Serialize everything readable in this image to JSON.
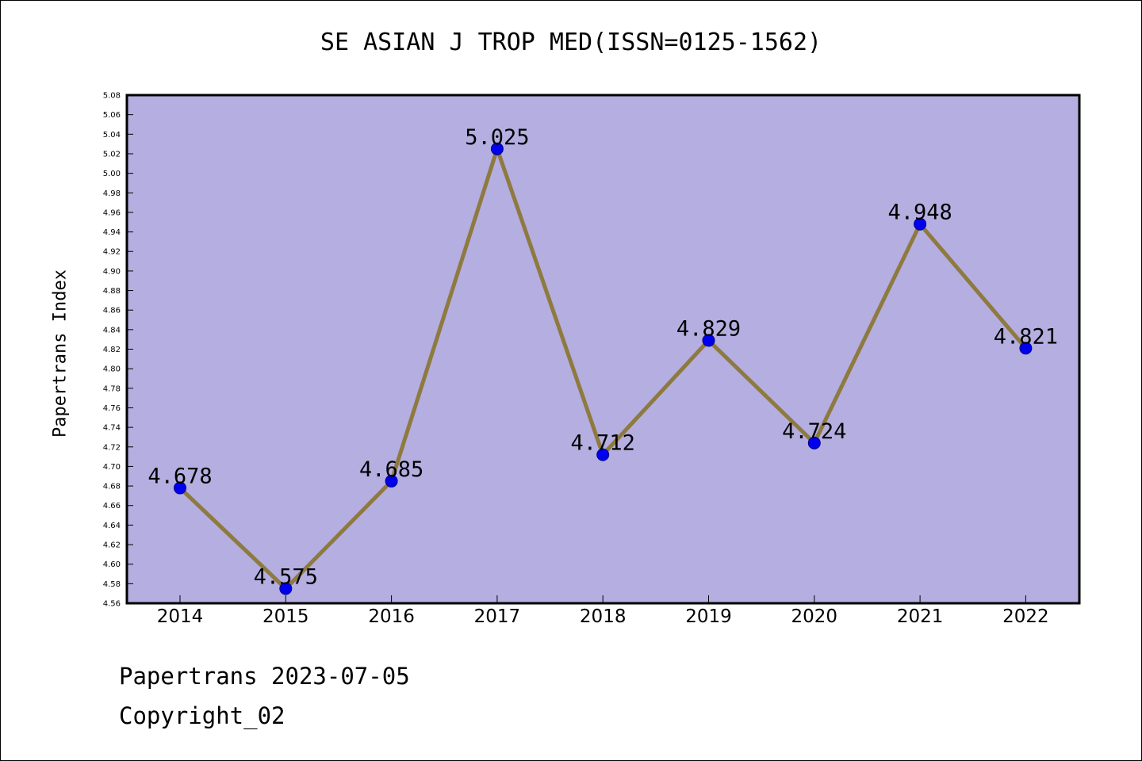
{
  "chart_data": {
    "type": "line",
    "title": "SE ASIAN J TROP MED(ISSN=0125-1562)",
    "xlabel": "",
    "ylabel": "Papertrans Index",
    "categories": [
      "2014",
      "2015",
      "2016",
      "2017",
      "2018",
      "2019",
      "2020",
      "2021",
      "2022"
    ],
    "series": [
      {
        "values": [
          4.678,
          4.575,
          4.685,
          5.025,
          4.712,
          4.829,
          4.724,
          4.948,
          4.821
        ],
        "labels": [
          "4.678",
          "4.575",
          "4.685",
          "5.025",
          "4.712",
          "4.829",
          "4.724",
          "4.948",
          "4.821"
        ]
      }
    ],
    "ylim": [
      4.56,
      5.08
    ],
    "yticks": [
      "4.56",
      "4.58",
      "4.60",
      "4.62",
      "4.64",
      "4.66",
      "4.68",
      "4.70",
      "4.72",
      "4.74",
      "4.76",
      "4.78",
      "4.80",
      "4.82",
      "4.84",
      "4.86",
      "4.88",
      "4.90",
      "4.92",
      "4.94",
      "4.96",
      "4.98",
      "5.00",
      "5.02",
      "5.04",
      "5.06",
      "5.08"
    ],
    "grid": false,
    "legend": "none",
    "colors": {
      "plot_background": "#b4aee1",
      "line": "#8e7a3f",
      "marker": "#0000ee",
      "marker_edge": "#00008b"
    }
  },
  "footer": {
    "line1": "Papertrans 2023-07-05",
    "line2": "Copyright_02"
  }
}
